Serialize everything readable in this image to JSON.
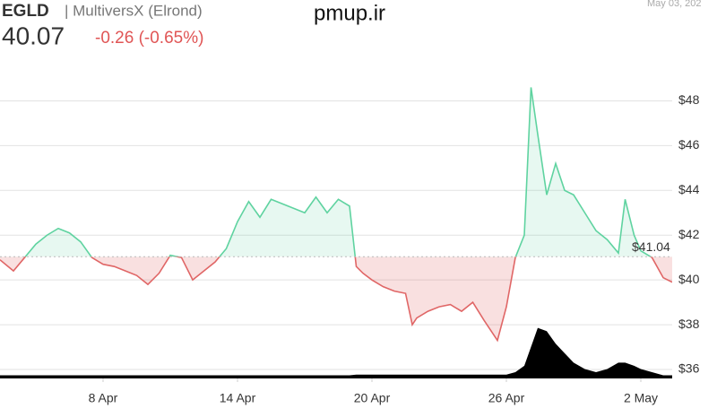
{
  "header": {
    "symbol": "EGLD",
    "name": "| MultiversX (Elrond)",
    "price": "40.07",
    "change": "-0.26 (-0.65%)",
    "watermark": "pmup.ir",
    "date": "May 03, 202"
  },
  "chart_data": {
    "type": "line",
    "x": [
      3.4,
      4,
      4.5,
      5,
      5.5,
      6,
      6.5,
      7,
      7.5,
      8,
      8.5,
      9,
      9.5,
      10,
      10.5,
      11,
      11.5,
      12,
      12.5,
      13,
      13.5,
      14,
      14.5,
      15,
      15.5,
      16,
      16.5,
      17,
      17.5,
      18,
      18.5,
      19,
      19.3,
      19.6,
      20,
      20.5,
      21,
      21.5,
      21.8,
      22,
      22.5,
      23,
      23.5,
      24,
      24.5,
      25,
      25.6,
      26,
      26.4,
      26.8,
      27.1,
      27.4,
      27.8,
      28.2,
      28.6,
      29,
      29.5,
      30,
      30.5,
      31,
      31.3,
      31.7,
      32,
      32.5,
      33,
      33.4
    ],
    "series": [
      {
        "name": "price",
        "up_color": "#5fd3a0",
        "down_color": "#e06666",
        "values": [
          40.9,
          40.4,
          41.0,
          41.6,
          42.0,
          42.3,
          42.1,
          41.7,
          41.0,
          40.7,
          40.6,
          40.4,
          40.2,
          39.8,
          40.3,
          41.1,
          41.0,
          40.0,
          40.4,
          40.8,
          41.4,
          42.6,
          43.5,
          42.8,
          43.6,
          43.4,
          43.2,
          43.0,
          43.7,
          43.0,
          43.6,
          43.3,
          40.6,
          40.3,
          40.0,
          39.7,
          39.5,
          39.4,
          38.0,
          38.3,
          38.6,
          38.8,
          38.9,
          38.6,
          39.0,
          38.2,
          37.3,
          38.8,
          41.0,
          42.0,
          48.6,
          46.5,
          43.8,
          45.2,
          44.0,
          43.8,
          43.0,
          42.2,
          41.8,
          41.2,
          43.6,
          42.0,
          41.3,
          41.0,
          40.1,
          39.9
        ]
      },
      {
        "name": "volume",
        "axis": "y2",
        "color": "#000000",
        "values": [
          1,
          1,
          1,
          1,
          1,
          1,
          1,
          1,
          1,
          1,
          1,
          1,
          1,
          1,
          1,
          1,
          1,
          1,
          1,
          1,
          1,
          1,
          1,
          1,
          1,
          1,
          1,
          1,
          1,
          1,
          1,
          1,
          1.2,
          1.2,
          1.2,
          1.2,
          1.2,
          1.2,
          1.2,
          1.2,
          1.2,
          1.2,
          1.2,
          1.2,
          1.2,
          1.2,
          1.2,
          1.2,
          2,
          4,
          10,
          16,
          15,
          11,
          8,
          5,
          3,
          2,
          3,
          5,
          5,
          4,
          3,
          2,
          1,
          1
        ]
      }
    ],
    "baseline": {
      "value": 41.04,
      "label": "$41.04"
    },
    "xlim": [
      3.4,
      33.4
    ],
    "xticks": [
      {
        "value": 8,
        "label": "8 Apr"
      },
      {
        "value": 14,
        "label": "14 Apr"
      },
      {
        "value": 20,
        "label": "20 Apr"
      },
      {
        "value": 26,
        "label": "26 Apr"
      },
      {
        "value": 32,
        "label": "2 May"
      }
    ],
    "ylim": [
      35.6,
      49.7
    ],
    "yticks": [
      {
        "value": 36,
        "label": "$36"
      },
      {
        "value": 38,
        "label": "$38"
      },
      {
        "value": 40,
        "label": "$40"
      },
      {
        "value": 42,
        "label": "$42"
      },
      {
        "value": 44,
        "label": "$44"
      },
      {
        "value": 46,
        "label": "$46"
      },
      {
        "value": 48,
        "label": "$48"
      }
    ],
    "y2lim": [
      0,
      100
    ],
    "grid": true
  }
}
